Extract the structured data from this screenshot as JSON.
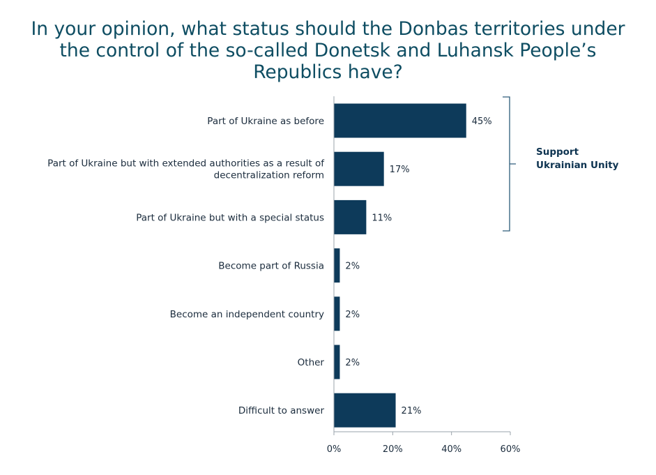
{
  "chart_data": {
    "type": "bar",
    "orientation": "horizontal",
    "title": [
      "In your opinion, what status should the Donbas territories under",
      "the control of the so-called Donetsk and Luhansk People’s",
      "Republics have?"
    ],
    "categories": [
      [
        "Part of Ukraine as before"
      ],
      [
        "Part of Ukraine but with extended authorities as a result of",
        "decentralization reform"
      ],
      [
        "Part of Ukraine but with a special status"
      ],
      [
        "Become part of Russia"
      ],
      [
        "Become an independent country"
      ],
      [
        "Other"
      ],
      [
        "Difficult to answer"
      ]
    ],
    "values": [
      45,
      17,
      11,
      2,
      2,
      2,
      21
    ],
    "value_labels": [
      "45%",
      "17%",
      "11%",
      "2%",
      "2%",
      "2%",
      "21%"
    ],
    "xlim": [
      0,
      60
    ],
    "xticks": [
      0,
      20,
      40,
      60
    ],
    "xtick_labels": [
      "0%",
      "20%",
      "40%",
      "60%"
    ],
    "grid": false,
    "bar_color": "#0d3a5a",
    "annotation": {
      "label": [
        "Support",
        "Ukrainian Unity"
      ],
      "spans_categories": [
        0,
        1,
        2
      ]
    }
  }
}
